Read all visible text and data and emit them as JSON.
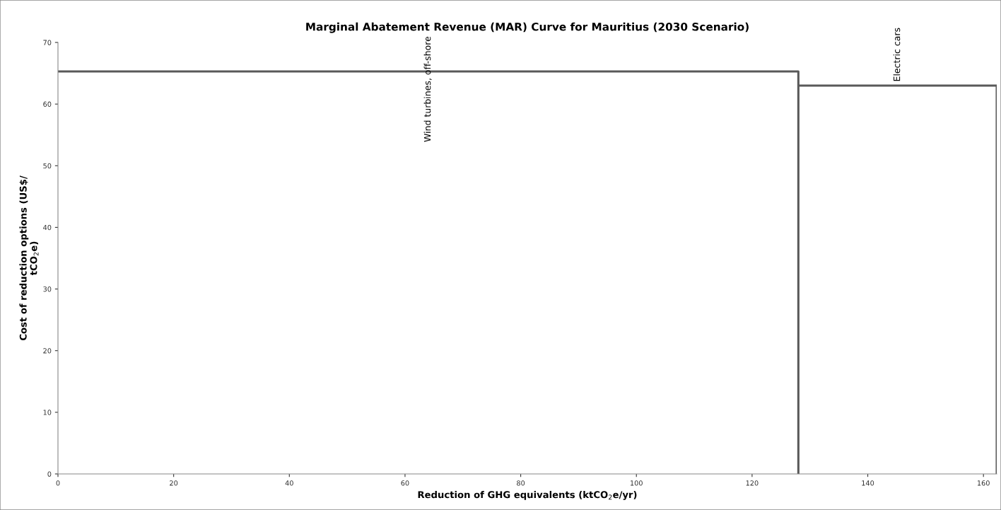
{
  "chart_data": {
    "type": "line",
    "title": "Marginal Abatement Revenue (MAR) Curve for Mauritius (2030 Scenario)",
    "xlabel": "Reduction of GHG equivalents (ktCO$_{2}$e/yr)",
    "ylabel": "Cost of reduction options (US$/\ntCO$_{2}$e)",
    "series": [
      {
        "color": "#595959",
        "x": [
          0,
          128,
          128,
          128,
          162.3,
          162.3
        ],
        "values": [
          65.3,
          65.3,
          0,
          63,
          63,
          0
        ]
      }
    ],
    "annotations": [
      {
        "text": "Wind turbines, off-shore",
        "x": 64,
        "y": 65.3
      },
      {
        "text": "Electric cars",
        "x": 145.15,
        "y": 63
      }
    ],
    "xlim": [
      0,
      162.3
    ],
    "xticks": [
      0,
      20,
      40,
      60,
      80,
      100,
      120,
      140,
      160
    ],
    "ylim": [
      0,
      70
    ],
    "yticks": [
      0,
      10,
      20,
      30,
      40,
      50,
      60,
      70
    ],
    "grid": false,
    "legend": false,
    "marker": "none",
    "line_style": "solid"
  }
}
